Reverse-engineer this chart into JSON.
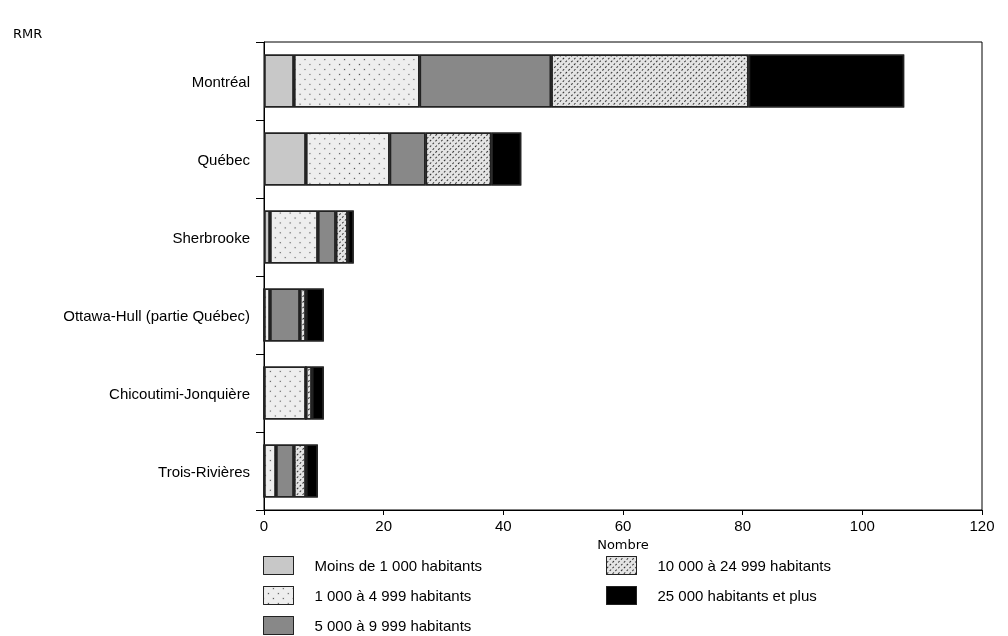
{
  "chart_data": {
    "type": "bar",
    "orientation": "horizontal",
    "stacked": true,
    "ylabel": "RMR",
    "xlabel": "Nombre",
    "categories": [
      "Montréal",
      "Québec",
      "Sherbrooke",
      "Ottawa-Hull (partie Québec)",
      "Chicoutimi-Jonquière",
      "Trois-Rivières"
    ],
    "series": [
      {
        "name": "Moins de 1 000 habitants",
        "color": "#c8c8c8",
        "values": [
          5,
          7,
          1,
          0,
          0,
          0
        ]
      },
      {
        "name": "1 000 à 4 999 habitants",
        "color": "#eeeeee",
        "values": [
          21,
          14,
          8,
          1,
          7,
          2
        ]
      },
      {
        "name": "5 000 à 9 999 habitants",
        "color": "#888888",
        "values": [
          22,
          6,
          3,
          5,
          0,
          3
        ]
      },
      {
        "name": "10 000 à 24 999 habitants",
        "color": "#e4e4e4",
        "values": [
          33,
          11,
          2,
          1,
          1,
          2
        ]
      },
      {
        "name": "25 000 habitants et plus",
        "color": "#000000",
        "values": [
          26,
          5,
          1,
          3,
          2,
          2
        ]
      }
    ],
    "xlim": [
      0,
      120
    ],
    "xticks": [
      0,
      20,
      40,
      60,
      80,
      100,
      120
    ],
    "grid": false,
    "legend": "bottom"
  }
}
